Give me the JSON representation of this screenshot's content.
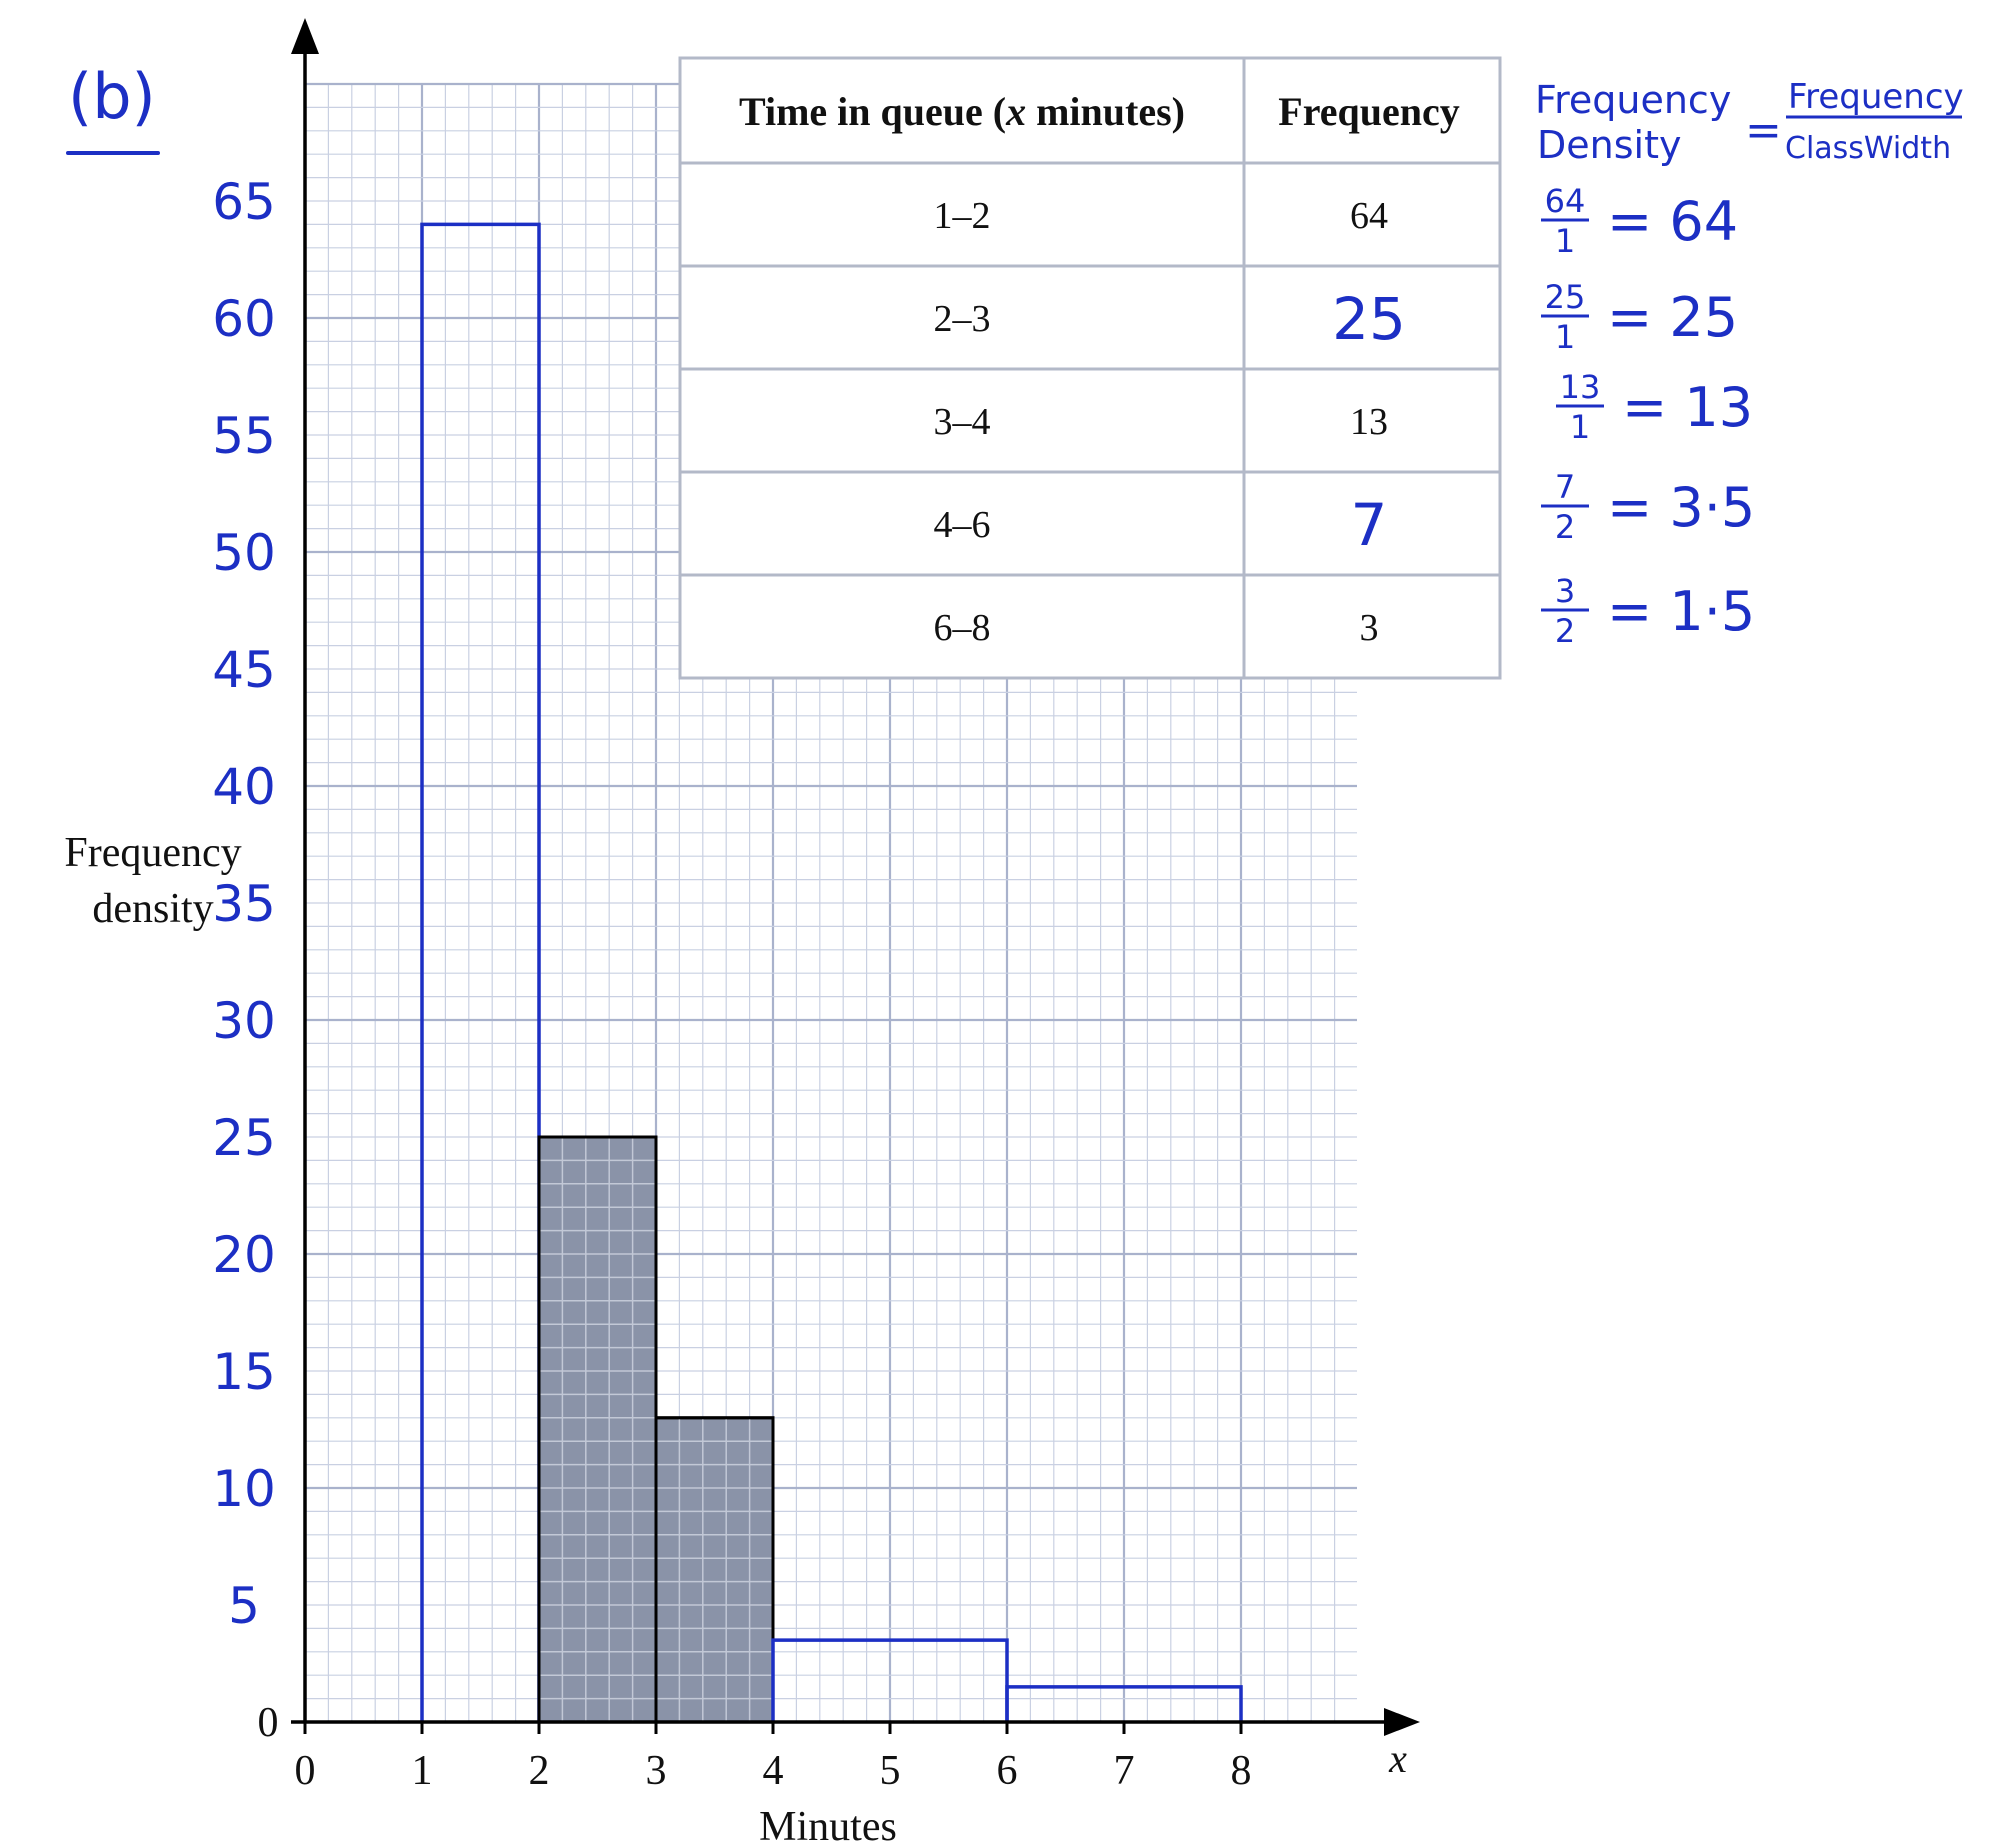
{
  "part_label": "(b)",
  "chart_data": {
    "type": "bar",
    "subtype": "histogram",
    "xlabel": "Minutes",
    "x_axis_letter": "x",
    "ylabel_line1": "Frequency",
    "ylabel_line2": "density",
    "x_ticks": [
      "0",
      "1",
      "2",
      "3",
      "4",
      "5",
      "6",
      "7",
      "8"
    ],
    "y_tick_origin": "0",
    "y_ticks_handwritten": [
      "5",
      "10",
      "15",
      "20",
      "25",
      "30",
      "35",
      "40",
      "45",
      "50",
      "55",
      "60",
      "65"
    ],
    "xlim": [
      0,
      9
    ],
    "ylim": [
      0,
      70
    ],
    "grid": true,
    "bars": [
      {
        "x_start": 1,
        "x_end": 2,
        "value": 64,
        "style": "outline"
      },
      {
        "x_start": 2,
        "x_end": 3,
        "value": 25,
        "style": "shaded"
      },
      {
        "x_start": 3,
        "x_end": 4,
        "value": 13,
        "style": "shaded"
      },
      {
        "x_start": 4,
        "x_end": 6,
        "value": 3.5,
        "style": "outline"
      },
      {
        "x_start": 6,
        "x_end": 8,
        "value": 1.5,
        "style": "outline"
      }
    ]
  },
  "table": {
    "header_left_1": "Time in queue (",
    "header_left_italic": "x",
    "header_left_2": " minutes)",
    "header_right": "Frequency",
    "rows": [
      {
        "interval": "1–2",
        "frequency": "64",
        "handwritten": false
      },
      {
        "interval": "2–3",
        "frequency": "25",
        "handwritten": true
      },
      {
        "interval": "3–4",
        "frequency": "13",
        "handwritten": false
      },
      {
        "interval": "4–6",
        "frequency": "7",
        "handwritten": true
      },
      {
        "interval": "6–8",
        "frequency": "3",
        "handwritten": false
      }
    ]
  },
  "notes": {
    "formula_lhs_top": "Frequency",
    "formula_lhs_bottom": "Density",
    "formula_equals": "=",
    "formula_rhs_top": "Frequency",
    "formula_rhs_bottom": "ClassWidth",
    "calculations": [
      {
        "num": "64",
        "den": "1",
        "result": "= 64"
      },
      {
        "num": "25",
        "den": "1",
        "result": "= 25"
      },
      {
        "num": "13",
        "den": "1",
        "result": "= 13"
      },
      {
        "num": "7",
        "den": "2",
        "result": "= 3·5"
      },
      {
        "num": "3",
        "den": "2",
        "result": "= 1·5"
      }
    ]
  },
  "colors": {
    "ink_blue": "#1c2fc4",
    "grid_fine": "#c9d0e2",
    "grid_major": "#a9b2cc",
    "shade": "#8a93a8",
    "axis": "#000000"
  }
}
